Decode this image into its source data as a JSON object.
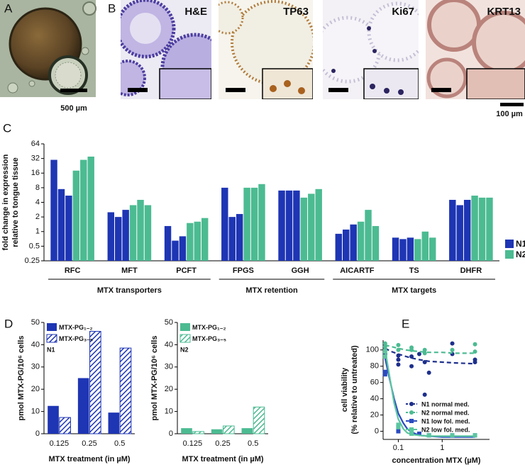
{
  "figure": {
    "panel_labels": [
      "A",
      "B",
      "C",
      "D",
      "E"
    ],
    "scale_bar_a": "500 µm",
    "stains": [
      "H&E",
      "TP63",
      "Ki67",
      "KRT13"
    ],
    "scale_bar_b": "100 µm"
  },
  "chart_data": [
    {
      "type": "bar",
      "log_y": true,
      "ylabel": [
        "fold change in expression",
        "relative to tongue tissue"
      ],
      "categories": [
        "RFC",
        "MFT",
        "PCFT",
        "FPGS",
        "GGH",
        "AICARTF",
        "TS",
        "DHFR"
      ],
      "groups": [
        {
          "label": "MTX transporters",
          "from": "RFC",
          "to": "PCFT"
        },
        {
          "label": "MTX retention",
          "from": "FPGS",
          "to": "GGH"
        },
        {
          "label": "MTX targets",
          "from": "AICARTF",
          "to": "DHFR"
        }
      ],
      "series": [
        {
          "name": "N1",
          "color": "#1e35b4",
          "values": [
            [
              30,
              7.5,
              5.5
            ],
            [
              2.5,
              2.0,
              2.8
            ],
            [
              1.3,
              0.65,
              0.8
            ],
            [
              8,
              2.0,
              2.3
            ],
            [
              7,
              7,
              7
            ],
            [
              0.9,
              1.1,
              1.4
            ],
            [
              0.75,
              0.7,
              0.75
            ],
            [
              4.5,
              3.5,
              4.5
            ]
          ]
        },
        {
          "name": "N2",
          "color": "#4cbb92",
          "values": [
            [
              18,
              30,
              35
            ],
            [
              3.5,
              4.5,
              3.5
            ],
            [
              1.5,
              1.6,
              1.9
            ],
            [
              8,
              8,
              9.5
            ],
            [
              5,
              6,
              7.5
            ],
            [
              1.6,
              2.8,
              1.3
            ],
            [
              0.7,
              1.0,
              0.75
            ],
            [
              5.5,
              5,
              5
            ]
          ]
        }
      ],
      "ylim": [
        0.25,
        64
      ],
      "yticks": [
        0.25,
        0.5,
        1,
        2,
        4,
        8,
        16,
        32,
        64
      ],
      "legend": "right"
    },
    {
      "type": "bar",
      "annotation": "N1",
      "ylabel": "pmol MTX-PG/10⁶ cells",
      "xlabel": "MTX treatment (in µM)",
      "categories": [
        "0.125",
        "0.25",
        "0.5"
      ],
      "series": [
        {
          "name": "MTX-PG₁₋₂",
          "color": "#1e35b4",
          "hatch": false,
          "values": [
            12.5,
            25,
            9.5
          ]
        },
        {
          "name": "MTX-PG₃₋₅",
          "color": "#1e35b4",
          "hatch": true,
          "values": [
            7.3,
            46,
            38.5
          ]
        }
      ],
      "ylim": [
        0,
        50
      ],
      "yticks": [
        0,
        10,
        20,
        30,
        40,
        50
      ],
      "legend": "upper left"
    },
    {
      "type": "bar",
      "annotation": "N2",
      "ylabel": "pmol MTX-PG/10⁶ cells",
      "xlabel": "MTX treatment (in µM)",
      "categories": [
        "0.125",
        "0.25",
        "0.5"
      ],
      "series": [
        {
          "name": "MTX-PG₁₋₂",
          "color": "#4cbb92",
          "hatch": false,
          "values": [
            2.5,
            2,
            2.5
          ]
        },
        {
          "name": "MTX-PG₃₋₅",
          "color": "#4cbb92",
          "hatch": true,
          "values": [
            1,
            3.5,
            12
          ]
        }
      ],
      "ylim": [
        0,
        50
      ],
      "yticks": [
        0,
        10,
        20,
        30,
        40,
        50
      ],
      "legend": "upper left"
    },
    {
      "type": "scatter",
      "log_x": true,
      "xlabel": "concentration MTX (µM)",
      "ylabel": [
        "cell viability",
        "(% relative to untreated)"
      ],
      "xlim": [
        0.045,
        12
      ],
      "xticks": [
        0.1,
        1
      ],
      "ylim": [
        -10,
        112
      ],
      "yticks": [
        0,
        20,
        40,
        60,
        80,
        100
      ],
      "legend": "lower right",
      "series": [
        {
          "name": "N1 normal med.",
          "color": "#1d2f8c",
          "marker": "circle",
          "linestyle": "dashed",
          "x": [
            0.05,
            0.05,
            0.05,
            0.1,
            0.1,
            0.1,
            0.2,
            0.2,
            0.3,
            0.4,
            0.4,
            0.5,
            1.7,
            1.7,
            5.6,
            5.6
          ],
          "values": [
            105,
            95,
            100,
            93,
            88,
            82,
            92,
            80,
            95,
            85,
            45,
            72,
            108,
            95,
            88,
            85
          ],
          "fit_x": [
            0.05,
            0.07,
            0.1,
            0.15,
            0.2,
            0.3,
            0.5,
            1,
            2,
            5.6
          ],
          "fit_values": [
            102,
            98,
            95,
            92,
            90,
            88,
            86,
            85,
            84,
            83
          ]
        },
        {
          "name": "N2 normal med.",
          "color": "#4cbb92",
          "marker": "circle",
          "linestyle": "dashed",
          "x": [
            0.05,
            0.05,
            0.05,
            0.1,
            0.1,
            0.2,
            0.2,
            0.4,
            0.4,
            1.7,
            5.6,
            5.6
          ],
          "values": [
            108,
            104,
            100,
            106,
            100,
            103,
            100,
            96,
            100,
            100,
            107,
            98
          ],
          "fit_x": [
            0.05,
            0.07,
            0.1,
            0.15,
            0.2,
            0.3,
            0.5,
            1,
            2,
            5.6
          ],
          "fit_values": [
            106,
            104,
            102,
            100,
            99,
            98,
            97,
            97,
            96,
            96
          ]
        },
        {
          "name": "N1 low fol. med.",
          "color": "#2a4bc0",
          "marker": "square",
          "linestyle": "solid",
          "x": [
            0.05,
            0.05,
            0.1,
            0.1,
            0.2,
            0.2,
            0.3,
            0.5,
            1.7,
            5.6
          ],
          "values": [
            73,
            70,
            5,
            0,
            -2,
            0,
            -3,
            -5,
            -5,
            -5
          ],
          "fit_x": [
            0.05,
            0.06,
            0.08,
            0.1,
            0.13,
            0.16,
            0.2,
            0.3,
            0.5,
            1,
            5.6
          ],
          "fit_values": [
            90,
            70,
            40,
            22,
            10,
            3,
            -1,
            -5,
            -6,
            -7,
            -7
          ]
        },
        {
          "name": "N2 low fol. med.",
          "color": "#5cc6a0",
          "marker": "square",
          "linestyle": "solid",
          "x": [
            0.05,
            0.05,
            0.1,
            0.1,
            0.2,
            0.2,
            0.5,
            1.7,
            5.6
          ],
          "values": [
            98,
            92,
            8,
            5,
            0,
            -3,
            -5,
            -5,
            -5
          ],
          "fit_x": [
            0.05,
            0.06,
            0.08,
            0.1,
            0.13,
            0.16,
            0.2,
            0.3,
            0.5,
            1,
            5.6
          ],
          "fit_values": [
            100,
            75,
            35,
            15,
            3,
            -2,
            -4,
            -5,
            -6,
            -6,
            -6
          ]
        }
      ]
    }
  ]
}
